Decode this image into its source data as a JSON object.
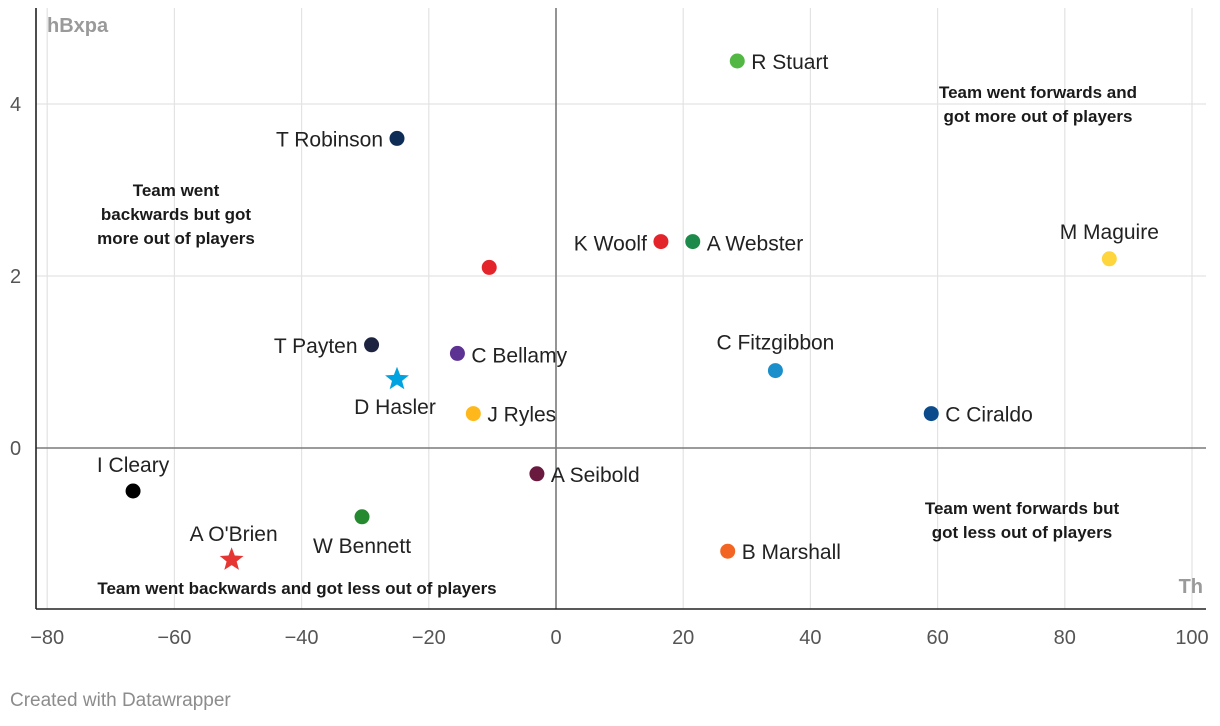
{
  "chart_data": {
    "type": "scatter",
    "xlabel": "Th",
    "ylabel": "hBxpa",
    "xlim": [
      -80,
      102
    ],
    "ylim": [
      -1.9,
      5.1
    ],
    "xticks": [
      -80,
      -60,
      -40,
      -20,
      0,
      20,
      40,
      60,
      80,
      100
    ],
    "xtick_labels": [
      "−80",
      "−60",
      "−40",
      "−20",
      "0",
      "20",
      "40",
      "60",
      "80",
      "100"
    ],
    "yticks": [
      0,
      2,
      4
    ],
    "ytick_labels": [
      "0",
      "2",
      "4"
    ],
    "grid": true,
    "points": [
      {
        "label": "R Stuart",
        "x": 28.5,
        "y": 4.5,
        "color": "#52b843",
        "shape": "circle"
      },
      {
        "label": "T Robinson",
        "x": -25,
        "y": 3.6,
        "color": "#0d2d57",
        "shape": "circle"
      },
      {
        "label": "K Woolf",
        "x": 16.5,
        "y": 2.4,
        "color": "#e3242b",
        "shape": "circle"
      },
      {
        "label": "A Webster",
        "x": 21.5,
        "y": 2.4,
        "color": "#1b8a4a",
        "shape": "circle"
      },
      {
        "label": "",
        "x": -10.5,
        "y": 2.1,
        "color": "#e3242b",
        "shape": "circle"
      },
      {
        "label": "M Maguire",
        "x": 87,
        "y": 2.2,
        "color": "#ffd53d",
        "shape": "circle"
      },
      {
        "label": "T Payten",
        "x": -29,
        "y": 1.2,
        "color": "#1c2440",
        "shape": "circle"
      },
      {
        "label": "C Bellamy",
        "x": -15.5,
        "y": 1.1,
        "color": "#5c3393",
        "shape": "circle"
      },
      {
        "label": "D Hasler",
        "x": -25,
        "y": 0.8,
        "color": "#00a3e0",
        "shape": "star"
      },
      {
        "label": "J Ryles",
        "x": -13,
        "y": 0.4,
        "color": "#ffb81c",
        "shape": "circle"
      },
      {
        "label": "C Fitzgibbon",
        "x": 34.5,
        "y": 0.9,
        "color": "#1a8fcb",
        "shape": "circle"
      },
      {
        "label": "C Ciraldo",
        "x": 59,
        "y": 0.4,
        "color": "#0b4a8b",
        "shape": "circle"
      },
      {
        "label": "I Cleary",
        "x": -66.5,
        "y": -0.5,
        "color": "#000000",
        "shape": "circle"
      },
      {
        "label": "A Seibold",
        "x": -3,
        "y": -0.3,
        "color": "#6b1a3f",
        "shape": "circle"
      },
      {
        "label": "W Bennett",
        "x": -30.5,
        "y": -0.8,
        "color": "#25892f",
        "shape": "circle"
      },
      {
        "label": "A O'Brien",
        "x": -51,
        "y": -1.3,
        "color": "#e63633",
        "shape": "star"
      },
      {
        "label": "B Marshall",
        "x": 27,
        "y": -1.2,
        "color": "#f26522",
        "shape": "circle"
      }
    ],
    "annotations": [
      {
        "lines": [
          "Team went forwards and",
          "got more out of players"
        ]
      },
      {
        "lines": [
          "Team went",
          "backwards but got",
          "more out of players"
        ]
      },
      {
        "lines": [
          "Team went forwards but",
          "got less out of players"
        ]
      },
      {
        "lines": [
          "Team went backwards and got less out of players"
        ]
      }
    ]
  },
  "footer": {
    "credit": "Created with Datawrapper"
  }
}
